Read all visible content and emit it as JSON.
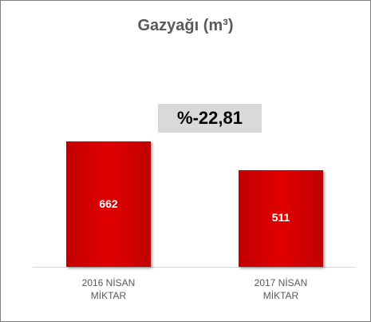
{
  "chart_data": {
    "type": "bar",
    "title": "Gazyağı (m³)",
    "annotation": "%-22,81",
    "categories": [
      "2016 NİSAN MİKTAR",
      "2017 NİSAN MİKTAR"
    ],
    "values": [
      662,
      511
    ],
    "color": "#c00000"
  }
}
